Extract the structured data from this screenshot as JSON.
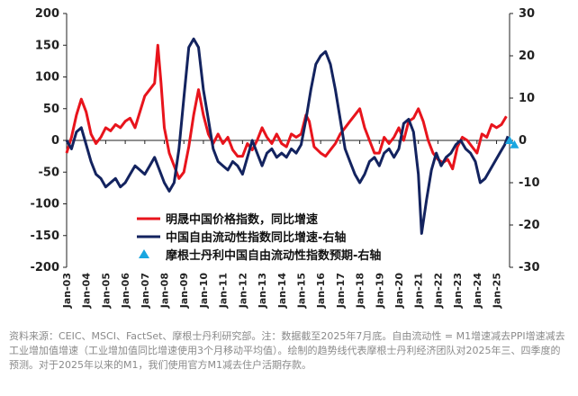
{
  "chart_data": {
    "type": "line",
    "title": "",
    "xlabel": "",
    "ylabel_left": "",
    "ylabel_right": "",
    "ylim_left": [
      -200,
      200
    ],
    "ylim_right": [
      -30,
      30
    ],
    "yticks_left": [
      "200",
      "150",
      "100",
      "50",
      "0",
      "-50",
      "-100",
      "-150",
      "-200"
    ],
    "yticks_right": [
      "30",
      "20",
      "10",
      "0",
      "-10",
      "-20",
      "-30"
    ],
    "x_start": "Jan-03",
    "x_end": "Sep-25",
    "categories": [
      "Jan-03",
      "Jan-04",
      "Jan-05",
      "Jan-06",
      "Jan-07",
      "Jan-08",
      "Jan-09",
      "Jan-10",
      "Jan-11",
      "Jan-12",
      "Jan-13",
      "Jan-14",
      "Jan-15",
      "Jan-16",
      "Jan-17",
      "Jan-18",
      "Jan-19",
      "Jan-20",
      "Jan-21",
      "Jan-22",
      "Jan-23",
      "Jan-24",
      "Jan-25"
    ],
    "legend_position": "lower-center",
    "grid": false,
    "series": [
      {
        "name": "明晟中国价格指数，同比增速",
        "axis": "left",
        "color": "#e8141c",
        "points": [
          [
            "Jan-03",
            -20
          ],
          [
            "Apr-03",
            5
          ],
          [
            "Jul-03",
            40
          ],
          [
            "Oct-03",
            65
          ],
          [
            "Jan-04",
            45
          ],
          [
            "Apr-04",
            10
          ],
          [
            "Jul-04",
            -5
          ],
          [
            "Oct-04",
            5
          ],
          [
            "Jan-05",
            20
          ],
          [
            "Apr-05",
            15
          ],
          [
            "Jul-05",
            25
          ],
          [
            "Oct-05",
            20
          ],
          [
            "Jan-06",
            30
          ],
          [
            "Apr-06",
            35
          ],
          [
            "Jul-06",
            20
          ],
          [
            "Oct-06",
            45
          ],
          [
            "Jan-07",
            70
          ],
          [
            "Apr-07",
            80
          ],
          [
            "Jul-07",
            90
          ],
          [
            "Sep-07",
            150
          ],
          [
            "Nov-07",
            90
          ],
          [
            "Jan-08",
            20
          ],
          [
            "Apr-08",
            -20
          ],
          [
            "Jul-08",
            -40
          ],
          [
            "Oct-08",
            -60
          ],
          [
            "Jan-09",
            -50
          ],
          [
            "Apr-09",
            -10
          ],
          [
            "Jul-09",
            40
          ],
          [
            "Oct-09",
            80
          ],
          [
            "Jan-10",
            40
          ],
          [
            "Apr-10",
            10
          ],
          [
            "Jul-10",
            -5
          ],
          [
            "Oct-10",
            10
          ],
          [
            "Jan-11",
            -5
          ],
          [
            "Apr-11",
            5
          ],
          [
            "Jul-11",
            -15
          ],
          [
            "Oct-11",
            -25
          ],
          [
            "Jan-12",
            -25
          ],
          [
            "Apr-12",
            -5
          ],
          [
            "Jul-12",
            -15
          ],
          [
            "Oct-12",
            0
          ],
          [
            "Jan-13",
            20
          ],
          [
            "Apr-13",
            5
          ],
          [
            "Jul-13",
            -5
          ],
          [
            "Oct-13",
            10
          ],
          [
            "Jan-14",
            -5
          ],
          [
            "Apr-14",
            -10
          ],
          [
            "Jul-14",
            10
          ],
          [
            "Oct-14",
            5
          ],
          [
            "Jan-15",
            10
          ],
          [
            "Apr-15",
            40
          ],
          [
            "Jun-15",
            30
          ],
          [
            "Sep-15",
            -10
          ],
          [
            "Jan-16",
            -20
          ],
          [
            "Apr-16",
            -25
          ],
          [
            "Jul-16",
            -15
          ],
          [
            "Oct-16",
            -5
          ],
          [
            "Jan-17",
            10
          ],
          [
            "Apr-17",
            20
          ],
          [
            "Jul-17",
            30
          ],
          [
            "Oct-17",
            40
          ],
          [
            "Jan-18",
            50
          ],
          [
            "Apr-18",
            20
          ],
          [
            "Jul-18",
            0
          ],
          [
            "Oct-18",
            -20
          ],
          [
            "Jan-19",
            -20
          ],
          [
            "Apr-19",
            5
          ],
          [
            "Jul-19",
            -5
          ],
          [
            "Oct-19",
            5
          ],
          [
            "Jan-20",
            20
          ],
          [
            "Apr-20",
            0
          ],
          [
            "Jul-20",
            30
          ],
          [
            "Oct-20",
            35
          ],
          [
            "Jan-21",
            50
          ],
          [
            "Apr-21",
            30
          ],
          [
            "Jul-21",
            0
          ],
          [
            "Oct-21",
            -20
          ],
          [
            "Jan-22",
            -30
          ],
          [
            "Apr-22",
            -35
          ],
          [
            "Jul-22",
            -30
          ],
          [
            "Oct-22",
            -45
          ],
          [
            "Jan-23",
            -10
          ],
          [
            "Apr-23",
            5
          ],
          [
            "Jul-23",
            0
          ],
          [
            "Oct-23",
            -10
          ],
          [
            "Jan-24",
            -20
          ],
          [
            "Apr-24",
            10
          ],
          [
            "Jul-24",
            5
          ],
          [
            "Oct-24",
            25
          ],
          [
            "Jan-25",
            20
          ],
          [
            "Apr-25",
            25
          ],
          [
            "Jul-25",
            38
          ]
        ]
      },
      {
        "name": "中国自由流动性指数同比增速-右轴",
        "axis": "right",
        "color": "#13235f",
        "points": [
          [
            "Jan-03",
            0
          ],
          [
            "Apr-03",
            -2
          ],
          [
            "Jul-03",
            2
          ],
          [
            "Oct-03",
            3
          ],
          [
            "Jan-04",
            -1
          ],
          [
            "Apr-04",
            -5
          ],
          [
            "Jul-04",
            -8
          ],
          [
            "Oct-04",
            -9
          ],
          [
            "Jan-05",
            -11
          ],
          [
            "Apr-05",
            -10
          ],
          [
            "Jul-05",
            -9
          ],
          [
            "Oct-05",
            -11
          ],
          [
            "Jan-06",
            -10
          ],
          [
            "Apr-06",
            -8
          ],
          [
            "Jul-06",
            -6
          ],
          [
            "Oct-06",
            -7
          ],
          [
            "Jan-07",
            -8
          ],
          [
            "Apr-07",
            -6
          ],
          [
            "Jul-07",
            -4
          ],
          [
            "Oct-07",
            -7
          ],
          [
            "Jan-08",
            -10
          ],
          [
            "Apr-08",
            -12
          ],
          [
            "Jul-08",
            -10
          ],
          [
            "Oct-08",
            -2
          ],
          [
            "Jan-09",
            10
          ],
          [
            "Apr-09",
            22
          ],
          [
            "Jul-09",
            24
          ],
          [
            "Oct-09",
            22
          ],
          [
            "Jan-10",
            12
          ],
          [
            "Apr-10",
            5
          ],
          [
            "Jul-10",
            -2
          ],
          [
            "Oct-10",
            -5
          ],
          [
            "Jan-11",
            -6
          ],
          [
            "Apr-11",
            -7
          ],
          [
            "Jul-11",
            -5
          ],
          [
            "Oct-11",
            -6
          ],
          [
            "Jan-12",
            -8
          ],
          [
            "Apr-12",
            -4
          ],
          [
            "Jul-12",
            0
          ],
          [
            "Oct-12",
            -3
          ],
          [
            "Jan-13",
            -6
          ],
          [
            "Apr-13",
            -3
          ],
          [
            "Jul-13",
            -2
          ],
          [
            "Oct-13",
            -4
          ],
          [
            "Jan-14",
            -3
          ],
          [
            "Apr-14",
            -4
          ],
          [
            "Jul-14",
            -2
          ],
          [
            "Oct-14",
            -3
          ],
          [
            "Jan-15",
            -1
          ],
          [
            "Apr-15",
            5
          ],
          [
            "Jul-15",
            12
          ],
          [
            "Oct-15",
            18
          ],
          [
            "Jan-16",
            20
          ],
          [
            "Apr-16",
            21
          ],
          [
            "Jul-16",
            18
          ],
          [
            "Oct-16",
            12
          ],
          [
            "Jan-17",
            5
          ],
          [
            "Apr-17",
            -2
          ],
          [
            "Jul-17",
            -5
          ],
          [
            "Oct-17",
            -8
          ],
          [
            "Jan-18",
            -10
          ],
          [
            "Apr-18",
            -8
          ],
          [
            "Jul-18",
            -5
          ],
          [
            "Oct-18",
            -4
          ],
          [
            "Jan-19",
            -6
          ],
          [
            "Apr-19",
            -3
          ],
          [
            "Jul-19",
            -2
          ],
          [
            "Oct-19",
            -4
          ],
          [
            "Jan-20",
            -2
          ],
          [
            "Apr-20",
            4
          ],
          [
            "Jul-20",
            5
          ],
          [
            "Oct-20",
            2
          ],
          [
            "Jan-21",
            -8
          ],
          [
            "Mar-21",
            -22
          ],
          [
            "Jun-21",
            -14
          ],
          [
            "Sep-21",
            -7
          ],
          [
            "Dec-21",
            -3
          ],
          [
            "Mar-22",
            -6
          ],
          [
            "Jun-22",
            -4
          ],
          [
            "Sep-22",
            -3
          ],
          [
            "Dec-22",
            -1
          ],
          [
            "Mar-23",
            0
          ],
          [
            "Jun-23",
            -2
          ],
          [
            "Sep-23",
            -3
          ],
          [
            "Dec-23",
            -5
          ],
          [
            "Mar-24",
            -10
          ],
          [
            "Jun-24",
            -9
          ],
          [
            "Sep-24",
            -7
          ],
          [
            "Dec-24",
            -5
          ],
          [
            "Mar-25",
            -3
          ],
          [
            "Jun-25",
            -1
          ],
          [
            "Aug-25",
            1
          ]
        ]
      },
      {
        "name": "摩根士丹利中国自由流动性指数预期-右轴",
        "axis": "right",
        "color": "#19a6e0",
        "marker": "triangle",
        "points": [
          [
            "Sep-25",
            0
          ],
          [
            "Dec-25",
            -1
          ]
        ]
      }
    ]
  },
  "source_note": "资料来源：CEIC、MSCI、FactSet、摩根士丹利研究部。注：数据截至2025年7月底。自由流动性 = M1增速减去PPI增速减去工业增加值增速（工业增加值同比增速使用3个月移动平均值）。绘制的趋势线代表摩根士丹利经济团队对2025年三、四季度的预测。对于2025年以来的M1，我们使用官方M1减去住户活期存款。"
}
